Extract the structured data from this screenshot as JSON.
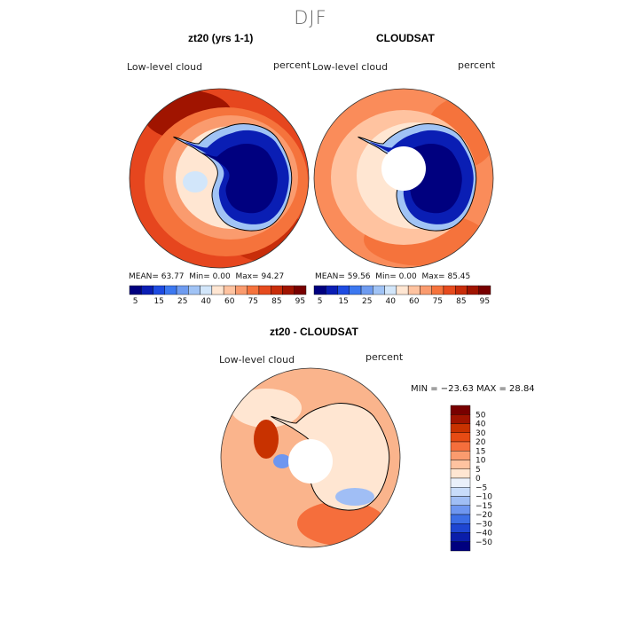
{
  "figure": {
    "title": "DJF"
  },
  "colors": {
    "scale": [
      "#00007f",
      "#0a1eb4",
      "#1e4be1",
      "#3c78f0",
      "#6e9bf0",
      "#a0c3f5",
      "#d2e6fa",
      "#ffe6d2",
      "#ffc3a0",
      "#fa9b6e",
      "#f5733c",
      "#e64b1e",
      "#c82d0a",
      "#a01400",
      "#780000"
    ],
    "diff_scale": [
      "#780000",
      "#a01400",
      "#c83200",
      "#e64b14",
      "#f56e3c",
      "#fa9b6e",
      "#ffc3a0",
      "#ffe6d2",
      "#eaf0fa",
      "#c8dcfa",
      "#a0bef5",
      "#6e96f0",
      "#3c6ee6",
      "#1e46d2",
      "#0a1eaa",
      "#00007f"
    ],
    "ocean_left": "#e6461e",
    "ocean_right": "#fa8c5a",
    "ocean_diff": "#fab48c",
    "ice": "#0a1eb4",
    "coast": "#000000"
  },
  "panels": {
    "left": {
      "title": "zt20 (yrs 1-1)",
      "variable": "Low-level cloud",
      "units": "percent",
      "stats": {
        "mean_label": "MEAN=",
        "mean": "63.77",
        "min_label": "Min=",
        "min": "0.00",
        "max_label": "Max=",
        "max": "94.27"
      }
    },
    "right": {
      "title": "CLOUDSAT",
      "variable": "Low-level cloud",
      "units": "percent",
      "stats": {
        "mean_label": "MEAN=",
        "mean": "59.56",
        "min_label": "Min=",
        "min": "0.00",
        "max_label": "Max=",
        "max": "85.45"
      }
    },
    "diff": {
      "title": "zt20 - CLOUDSAT",
      "variable": "Low-level cloud",
      "units": "percent",
      "stats": {
        "text": "MIN = −23.63  MAX =  28.84"
      }
    }
  },
  "colorbar_ticks": [
    "5",
    "15",
    "25",
    "40",
    "60",
    "75",
    "85",
    "95"
  ],
  "diff_colorbar_ticks": [
    "50",
    "40",
    "30",
    "20",
    "15",
    "10",
    "5",
    "0",
    "−5",
    "−10",
    "−15",
    "−20",
    "−30",
    "−40",
    "−50"
  ]
}
